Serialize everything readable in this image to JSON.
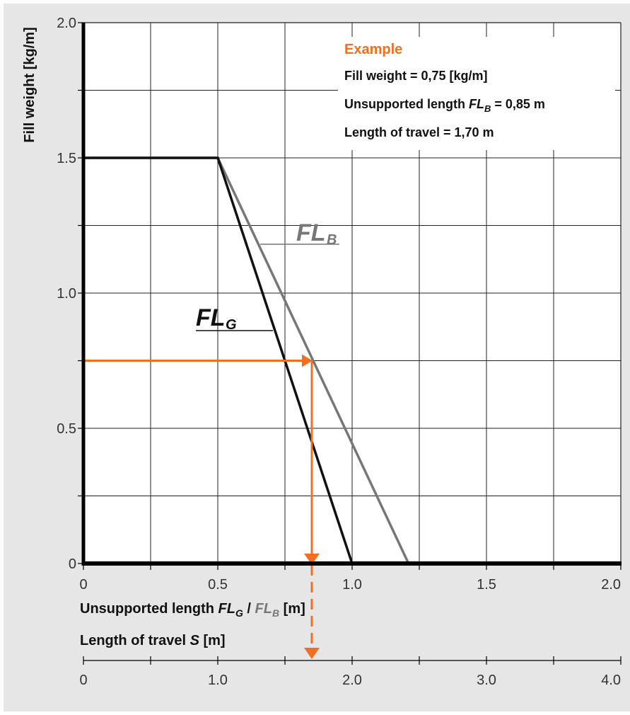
{
  "chart_data": {
    "type": "line",
    "title": "",
    "ylabel": "Fill weight [kg/m]",
    "xlabel_primary": {
      "prefix": "Unsupported length ",
      "fl": "FL",
      "sub_g": "G",
      "sep": " / ",
      "sub_b": "B",
      "suffix": " [m]"
    },
    "xlabel_secondary": {
      "prefix": "Length of travel ",
      "var": "S",
      "suffix": " [m]"
    },
    "xlim": [
      0,
      2.0
    ],
    "ylim": [
      0,
      2.0
    ],
    "x_ticks": [
      "0",
      "0.5",
      "1.0",
      "1.5",
      "2.0"
    ],
    "y_ticks": [
      "0",
      "0.5",
      "1.0",
      "1.5",
      "2.0"
    ],
    "secondary_axis": {
      "xlim": [
        0,
        4.0
      ],
      "ticks": [
        "0",
        "1.0",
        "2.0",
        "3.0",
        "4.0"
      ]
    },
    "grid": true,
    "series": [
      {
        "name_main": "FL",
        "name_sub": "G",
        "color": "#111111",
        "x": [
          0,
          0.5,
          1.0
        ],
        "y": [
          1.5,
          1.5,
          0
        ]
      },
      {
        "name_main": "FL",
        "name_sub": "B",
        "color": "#777777",
        "x": [
          0,
          0.5,
          1.21
        ],
        "y": [
          1.5,
          1.5,
          0
        ]
      }
    ],
    "example": {
      "fill_weight": 0.75,
      "unsupported_length": 0.85,
      "length_of_travel": 1.7,
      "color": "#F07020"
    },
    "annotation": {
      "title": "Example",
      "line1": "Fill weight = 0,75 [kg/m]",
      "line2_prefix": "Unsupported length ",
      "line2_fl": "FL",
      "line2_sub": "B",
      "line2_suffix": " = 0,85 m",
      "line3": "Length of travel = 1,70 m"
    }
  },
  "colors": {
    "background": "#E6E6E6",
    "plot_area": "#FFFFFF",
    "grid": "#222222",
    "accent": "#F07020"
  }
}
